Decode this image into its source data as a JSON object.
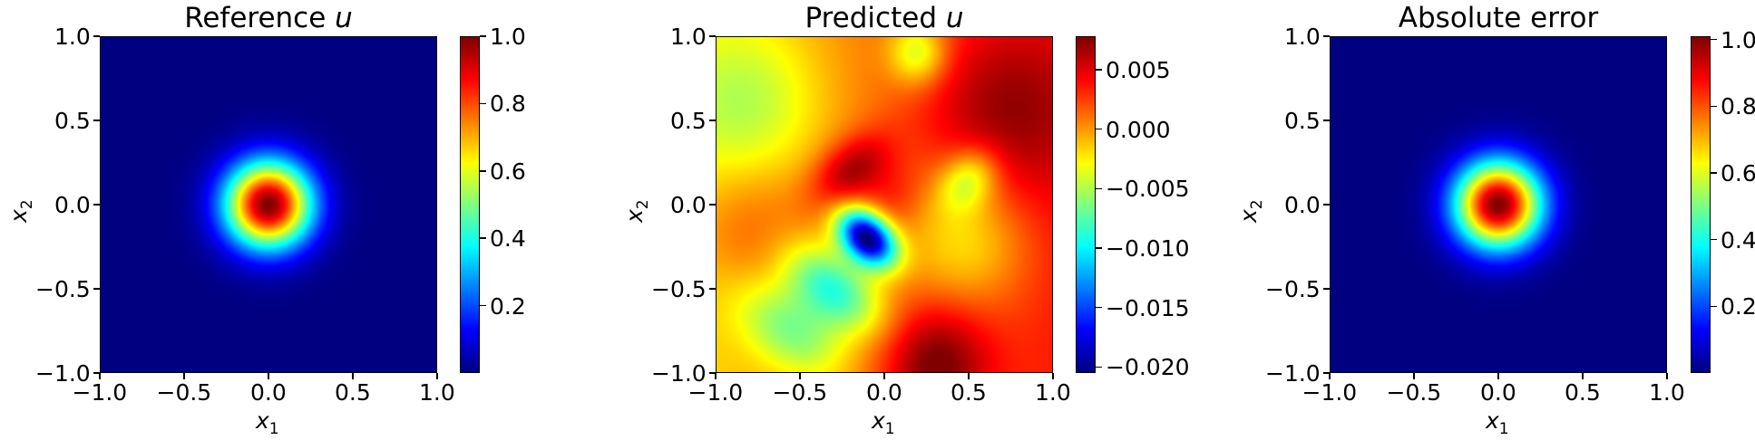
{
  "chart_data": [
    {
      "type": "heatmap",
      "title": "Reference u",
      "title_parts": {
        "text": "Reference ",
        "math": "u"
      },
      "xlabel": "x1",
      "ylabel": "x2",
      "xlim": [
        -1.0,
        1.0
      ],
      "ylim": [
        -1.0,
        1.0
      ],
      "xticks": [
        "−1.0",
        "−0.5",
        "0.0",
        "0.5",
        "1.0"
      ],
      "yticks": [
        "1.0",
        "0.5",
        "0.0",
        "−0.5",
        "−1.0"
      ],
      "colormap": "jet",
      "colorbar": {
        "range": [
          0.0,
          1.0
        ],
        "ticks": [
          "1.0",
          "0.8",
          "0.6",
          "0.4",
          "0.2"
        ],
        "tick_values": [
          1.0,
          0.8,
          0.6,
          0.4,
          0.2
        ]
      },
      "field": {
        "shape": "radial gaussian",
        "center": [
          0.0,
          0.0
        ],
        "peak": 1.0,
        "sigma": 0.18
      }
    },
    {
      "type": "heatmap",
      "title": "Predicted u",
      "title_parts": {
        "text": "Predicted ",
        "math": "u"
      },
      "xlabel": "x1",
      "ylabel": "x2",
      "xlim": [
        -1.0,
        1.0
      ],
      "ylim": [
        -1.0,
        1.0
      ],
      "xticks": [
        "−1.0",
        "−0.5",
        "0.0",
        "0.5",
        "1.0"
      ],
      "yticks": [
        "1.0",
        "0.5",
        "0.0",
        "−0.5",
        "−1.0"
      ],
      "colormap": "jet",
      "colorbar": {
        "range": [
          -0.0205,
          0.0078
        ],
        "ticks": [
          "0.005",
          "0.000",
          "−0.005",
          "−0.010",
          "−0.015",
          "−0.020"
        ],
        "tick_values": [
          0.005,
          0.0,
          -0.005,
          -0.01,
          -0.015,
          -0.02
        ]
      },
      "field": {
        "baseline": 0.001,
        "max": 0.0078,
        "min": -0.0205,
        "max_location": [
          -0.2,
          0.2
        ],
        "min_location": [
          -0.05,
          -0.2
        ]
      }
    },
    {
      "type": "heatmap",
      "title": "Absolute error",
      "xlabel": "x1",
      "ylabel": "x2",
      "xlim": [
        -1.0,
        1.0
      ],
      "ylim": [
        -1.0,
        1.0
      ],
      "xticks": [
        "−1.0",
        "−0.5",
        "0.0",
        "0.5",
        "1.0"
      ],
      "yticks": [
        "1.0",
        "0.5",
        "0.0",
        "−0.5",
        "−1.0"
      ],
      "colormap": "jet",
      "colorbar": {
        "range": [
          0.0,
          1.01
        ],
        "ticks": [
          "1.0",
          "0.8",
          "0.6",
          "0.4",
          "0.2"
        ],
        "tick_values": [
          1.0,
          0.8,
          0.6,
          0.4,
          0.2
        ]
      },
      "field": {
        "shape": "radial gaussian",
        "center": [
          0.0,
          0.0
        ],
        "peak": 1.01,
        "sigma": 0.18
      }
    }
  ]
}
